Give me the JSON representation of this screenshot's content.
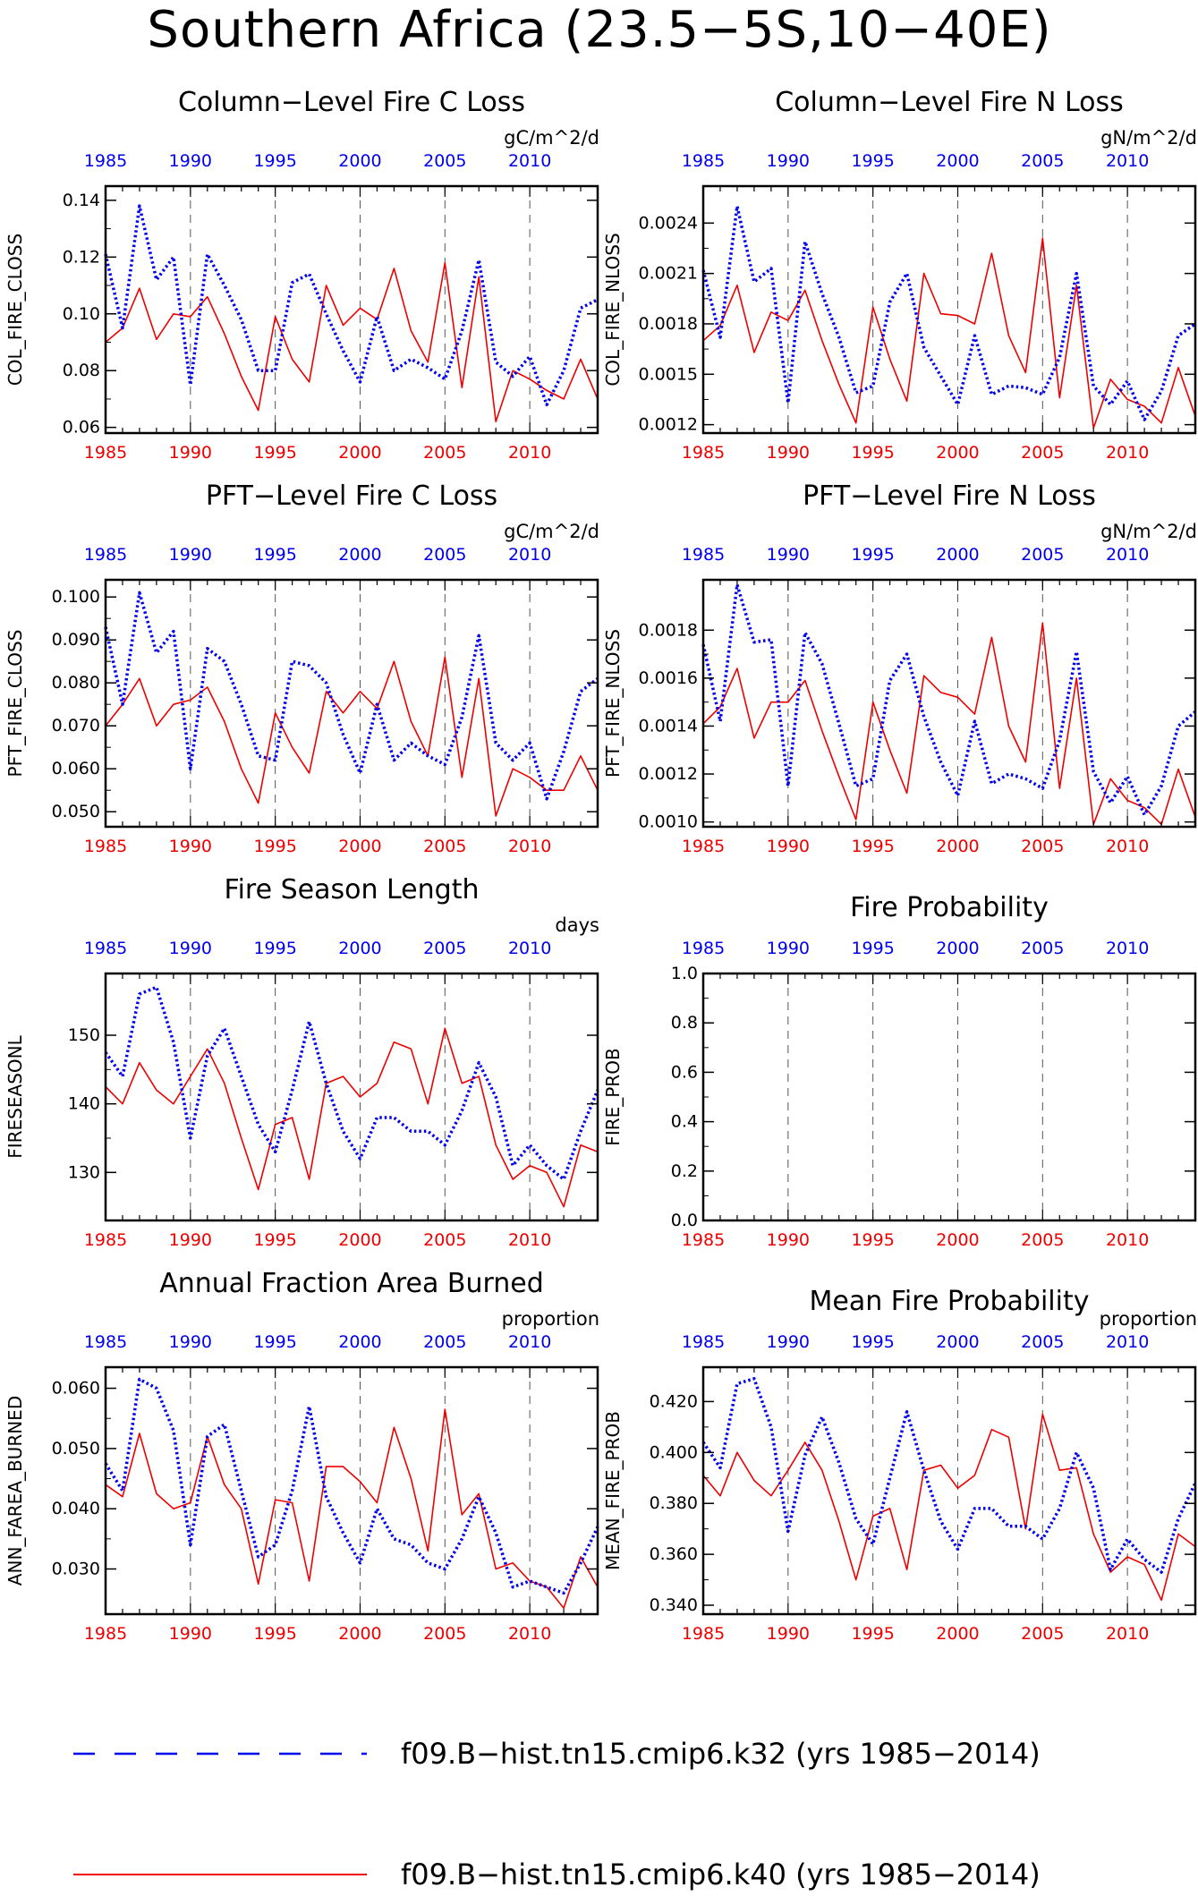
{
  "page": {
    "title": "Southern Africa (23.5−5S,10−40E)"
  },
  "colors": {
    "blue_series": "#0000ee",
    "red_series": "#ee0000",
    "axis": "#000000"
  },
  "legend": {
    "items": [
      {
        "label": "f09.B−hist.tn15.cmip6.k32 (yrs 1985−2014)",
        "color": "#0000ee",
        "style": "dotted"
      },
      {
        "label": "f09.B−hist.tn15.cmip6.k40 (yrs 1985−2014)",
        "color": "#ee0000",
        "style": "solid"
      }
    ]
  },
  "chart_data": [
    {
      "type": "line",
      "title": "Column−Level Fire C Loss",
      "units": "gC/m^2/d",
      "ylabel": "COL_FIRE_CLOSS",
      "xlim": [
        1985,
        2014
      ],
      "ylim": [
        0.058,
        0.145
      ],
      "yticks": [
        0.06,
        0.08,
        0.1,
        0.12,
        0.14
      ],
      "ytick_labels": [
        "0.06",
        "0.08",
        "0.10",
        "0.12",
        "0.14"
      ],
      "xticks": [
        1985,
        1990,
        1995,
        2000,
        2005,
        2010
      ],
      "x": [
        1985,
        1986,
        1987,
        1988,
        1989,
        1990,
        1991,
        1992,
        1993,
        1994,
        1995,
        1996,
        1997,
        1998,
        1999,
        2000,
        2001,
        2002,
        2003,
        2004,
        2005,
        2006,
        2007,
        2008,
        2009,
        2010,
        2011,
        2012,
        2013,
        2014
      ],
      "series": [
        {
          "name": "f09.B−hist.tn15.cmip6.k32",
          "color": "#0000ee",
          "style": "dotted",
          "values": [
            0.121,
            0.095,
            0.138,
            0.112,
            0.12,
            0.075,
            0.121,
            0.11,
            0.098,
            0.08,
            0.08,
            0.111,
            0.114,
            0.1,
            0.087,
            0.076,
            0.099,
            0.08,
            0.084,
            0.081,
            0.077,
            0.094,
            0.119,
            0.083,
            0.078,
            0.085,
            0.068,
            0.08,
            0.102,
            0.105
          ]
        },
        {
          "name": "f09.B−hist.tn15.cmip6.k40",
          "color": "#ee0000",
          "style": "solid",
          "values": [
            0.09,
            0.095,
            0.109,
            0.091,
            0.1,
            0.099,
            0.106,
            0.093,
            0.078,
            0.066,
            0.099,
            0.084,
            0.076,
            0.11,
            0.096,
            0.102,
            0.098,
            0.116,
            0.094,
            0.083,
            0.118,
            0.074,
            0.113,
            0.062,
            0.08,
            0.077,
            0.073,
            0.07,
            0.084,
            0.07
          ]
        }
      ]
    },
    {
      "type": "line",
      "title": "Column−Level Fire N Loss",
      "units": "gN/m^2/d",
      "ylabel": "COL_FIRE_NLOSS",
      "xlim": [
        1985,
        2014
      ],
      "ylim": [
        0.00115,
        0.00262
      ],
      "yticks": [
        0.0012,
        0.0015,
        0.0018,
        0.0021,
        0.0024
      ],
      "ytick_labels": [
        "0.0012",
        "0.0015",
        "0.0018",
        "0.0021",
        "0.0024"
      ],
      "xticks": [
        1985,
        1990,
        1995,
        2000,
        2005,
        2010
      ],
      "x": [
        1985,
        1986,
        1987,
        1988,
        1989,
        1990,
        1991,
        1992,
        1993,
        1994,
        1995,
        1996,
        1997,
        1998,
        1999,
        2000,
        2001,
        2002,
        2003,
        2004,
        2005,
        2006,
        2007,
        2008,
        2009,
        2010,
        2011,
        2012,
        2013,
        2014
      ],
      "series": [
        {
          "name": "f09.B−hist.tn15.cmip6.k32",
          "color": "#0000ee",
          "style": "dotted",
          "values": [
            0.00212,
            0.00172,
            0.0025,
            0.00205,
            0.00213,
            0.00133,
            0.00229,
            0.00198,
            0.00172,
            0.00139,
            0.00143,
            0.00193,
            0.0021,
            0.00166,
            0.00149,
            0.00132,
            0.00173,
            0.00138,
            0.00143,
            0.00142,
            0.00138,
            0.0016,
            0.0021,
            0.00143,
            0.00132,
            0.00146,
            0.00123,
            0.0014,
            0.00173,
            0.0018
          ]
        },
        {
          "name": "f09.B−hist.tn15.cmip6.k40",
          "color": "#ee0000",
          "style": "solid",
          "values": [
            0.0017,
            0.00179,
            0.00203,
            0.00163,
            0.00187,
            0.00182,
            0.002,
            0.0017,
            0.00144,
            0.00121,
            0.0019,
            0.00159,
            0.00134,
            0.0021,
            0.00186,
            0.00185,
            0.0018,
            0.00222,
            0.00173,
            0.00151,
            0.00231,
            0.00136,
            0.00203,
            0.00118,
            0.00147,
            0.00135,
            0.00131,
            0.00121,
            0.00154,
            0.00125
          ]
        }
      ]
    },
    {
      "type": "line",
      "title": "PFT−Level Fire C Loss",
      "units": "gC/m^2/d",
      "ylabel": "PFT_FIRE_CLOSS",
      "xlim": [
        1985,
        2014
      ],
      "ylim": [
        0.0465,
        0.104
      ],
      "yticks": [
        0.05,
        0.06,
        0.07,
        0.08,
        0.09,
        0.1
      ],
      "ytick_labels": [
        "0.050",
        "0.060",
        "0.070",
        "0.080",
        "0.090",
        "0.100"
      ],
      "xticks": [
        1985,
        1990,
        1995,
        2000,
        2005,
        2010
      ],
      "x": [
        1985,
        1986,
        1987,
        1988,
        1989,
        1990,
        1991,
        1992,
        1993,
        1994,
        1995,
        1996,
        1997,
        1998,
        1999,
        2000,
        2001,
        2002,
        2003,
        2004,
        2005,
        2006,
        2007,
        2008,
        2009,
        2010,
        2011,
        2012,
        2013,
        2014
      ],
      "series": [
        {
          "name": "f09.B−hist.tn15.cmip6.k32",
          "color": "#0000ee",
          "style": "dotted",
          "values": [
            0.093,
            0.075,
            0.101,
            0.087,
            0.092,
            0.06,
            0.088,
            0.085,
            0.075,
            0.063,
            0.062,
            0.085,
            0.084,
            0.08,
            0.068,
            0.059,
            0.075,
            0.062,
            0.066,
            0.063,
            0.061,
            0.072,
            0.091,
            0.066,
            0.062,
            0.066,
            0.053,
            0.064,
            0.078,
            0.081
          ]
        },
        {
          "name": "f09.B−hist.tn15.cmip6.k40",
          "color": "#ee0000",
          "style": "solid",
          "values": [
            0.07,
            0.075,
            0.081,
            0.07,
            0.075,
            0.076,
            0.079,
            0.071,
            0.06,
            0.052,
            0.073,
            0.065,
            0.059,
            0.078,
            0.073,
            0.078,
            0.074,
            0.085,
            0.071,
            0.063,
            0.086,
            0.058,
            0.081,
            0.049,
            0.06,
            0.058,
            0.055,
            0.055,
            0.063,
            0.055
          ]
        }
      ]
    },
    {
      "type": "line",
      "title": "PFT−Level Fire N Loss",
      "units": "gN/m^2/d",
      "ylabel": "PFT_FIRE_NLOSS",
      "xlim": [
        1985,
        2014
      ],
      "ylim": [
        0.00098,
        0.00201
      ],
      "yticks": [
        0.001,
        0.0012,
        0.0014,
        0.0016,
        0.0018
      ],
      "ytick_labels": [
        "0.0010",
        "0.0012",
        "0.0014",
        "0.0016",
        "0.0018"
      ],
      "xticks": [
        1985,
        1990,
        1995,
        2000,
        2005,
        2010
      ],
      "x": [
        1985,
        1986,
        1987,
        1988,
        1989,
        1990,
        1991,
        1992,
        1993,
        1994,
        1995,
        1996,
        1997,
        1998,
        1999,
        2000,
        2001,
        2002,
        2003,
        2004,
        2005,
        2006,
        2007,
        2008,
        2009,
        2010,
        2011,
        2012,
        2013,
        2014
      ],
      "series": [
        {
          "name": "f09.B−hist.tn15.cmip6.k32",
          "color": "#0000ee",
          "style": "dotted",
          "values": [
            0.00174,
            0.00142,
            0.00199,
            0.00175,
            0.00176,
            0.00115,
            0.00179,
            0.00166,
            0.00141,
            0.00115,
            0.00118,
            0.00159,
            0.0017,
            0.00144,
            0.00125,
            0.00111,
            0.00142,
            0.00116,
            0.0012,
            0.00118,
            0.00114,
            0.00134,
            0.00171,
            0.00121,
            0.00108,
            0.00119,
            0.00103,
            0.00115,
            0.0014,
            0.00146
          ]
        },
        {
          "name": "f09.B−hist.tn15.cmip6.k40",
          "color": "#ee0000",
          "style": "solid",
          "values": [
            0.00141,
            0.00148,
            0.00164,
            0.00135,
            0.0015,
            0.0015,
            0.00159,
            0.00138,
            0.00119,
            0.00101,
            0.0015,
            0.0013,
            0.00112,
            0.00161,
            0.00154,
            0.00152,
            0.00145,
            0.00177,
            0.0014,
            0.00125,
            0.00183,
            0.00114,
            0.0016,
            0.00099,
            0.00118,
            0.00109,
            0.00106,
            0.00099,
            0.00122,
            0.00102
          ]
        }
      ]
    },
    {
      "type": "line",
      "title": "Fire Season Length",
      "units": "days",
      "ylabel": "FIRESEASONL",
      "xlim": [
        1985,
        2014
      ],
      "ylim": [
        123,
        159
      ],
      "yticks": [
        130,
        140,
        150
      ],
      "ytick_labels": [
        "130",
        "140",
        "150"
      ],
      "xticks": [
        1985,
        1990,
        1995,
        2000,
        2005,
        2010
      ],
      "x": [
        1985,
        1986,
        1987,
        1988,
        1989,
        1990,
        1991,
        1992,
        1993,
        1994,
        1995,
        1996,
        1997,
        1998,
        1999,
        2000,
        2001,
        2002,
        2003,
        2004,
        2005,
        2006,
        2007,
        2008,
        2009,
        2010,
        2011,
        2012,
        2013,
        2014
      ],
      "series": [
        {
          "name": "f09.B−hist.tn15.cmip6.k32",
          "color": "#0000ee",
          "style": "dotted",
          "values": [
            147.5,
            144,
            156,
            157,
            149,
            135,
            147,
            151,
            144,
            137,
            133,
            142,
            152,
            143,
            136,
            132,
            138,
            138,
            136,
            136,
            134,
            139,
            146,
            141,
            131,
            134,
            131,
            129,
            136,
            142
          ]
        },
        {
          "name": "f09.B−hist.tn15.cmip6.k40",
          "color": "#ee0000",
          "style": "solid",
          "values": [
            142.5,
            140,
            146,
            142,
            140,
            144,
            148,
            143,
            135,
            127.5,
            137,
            138,
            129,
            143,
            144,
            141,
            143,
            149,
            148,
            140,
            151,
            143,
            144,
            134,
            129,
            131,
            130,
            125,
            134,
            133
          ]
        }
      ]
    },
    {
      "type": "line",
      "title": "Fire Probability",
      "units": "",
      "ylabel": "FIRE_PROB",
      "xlim": [
        1985,
        2014
      ],
      "ylim": [
        0.0,
        1.0
      ],
      "yticks": [
        0.0,
        0.2,
        0.4,
        0.6,
        0.8,
        1.0
      ],
      "ytick_labels": [
        "0.0",
        "0.2",
        "0.4",
        "0.6",
        "0.8",
        "1.0"
      ],
      "xticks": [
        1985,
        1990,
        1995,
        2000,
        2005,
        2010
      ],
      "x": [],
      "series": []
    },
    {
      "type": "line",
      "title": "Annual Fraction Area Burned",
      "units": "proportion",
      "ylabel": "ANN_FAREA_BURNED",
      "xlim": [
        1985,
        2014
      ],
      "ylim": [
        0.0225,
        0.0635
      ],
      "yticks": [
        0.03,
        0.04,
        0.05,
        0.06
      ],
      "ytick_labels": [
        "0.030",
        "0.040",
        "0.050",
        "0.060"
      ],
      "xticks": [
        1985,
        1990,
        1995,
        2000,
        2005,
        2010
      ],
      "x": [
        1985,
        1986,
        1987,
        1988,
        1989,
        1990,
        1991,
        1992,
        1993,
        1994,
        1995,
        1996,
        1997,
        1998,
        1999,
        2000,
        2001,
        2002,
        2003,
        2004,
        2005,
        2006,
        2007,
        2008,
        2009,
        2010,
        2011,
        2012,
        2013,
        2014
      ],
      "series": [
        {
          "name": "f09.B−hist.tn15.cmip6.k32",
          "color": "#0000ee",
          "style": "dotted",
          "values": [
            0.0475,
            0.043,
            0.0615,
            0.06,
            0.053,
            0.034,
            0.052,
            0.054,
            0.043,
            0.032,
            0.034,
            0.043,
            0.057,
            0.042,
            0.036,
            0.031,
            0.04,
            0.035,
            0.034,
            0.031,
            0.03,
            0.035,
            0.042,
            0.036,
            0.027,
            0.028,
            0.027,
            0.026,
            0.031,
            0.037
          ]
        },
        {
          "name": "f09.B−hist.tn15.cmip6.k40",
          "color": "#ee0000",
          "style": "solid",
          "values": [
            0.044,
            0.042,
            0.0525,
            0.0425,
            0.04,
            0.041,
            0.052,
            0.044,
            0.04,
            0.0275,
            0.0415,
            0.041,
            0.028,
            0.047,
            0.047,
            0.0445,
            0.041,
            0.0535,
            0.045,
            0.033,
            0.0565,
            0.039,
            0.0425,
            0.03,
            0.031,
            0.028,
            0.027,
            0.0235,
            0.032,
            0.027
          ]
        }
      ]
    },
    {
      "type": "line",
      "title": "Mean Fire Probability",
      "units": "proportion",
      "ylabel": "MEAN_FIRE_PROB",
      "xlim": [
        1985,
        2014
      ],
      "ylim": [
        0.3365,
        0.4335
      ],
      "yticks": [
        0.34,
        0.36,
        0.38,
        0.4,
        0.42
      ],
      "ytick_labels": [
        "0.340",
        "0.360",
        "0.380",
        "0.400",
        "0.420"
      ],
      "xticks": [
        1985,
        1990,
        1995,
        2000,
        2005,
        2010
      ],
      "x": [
        1985,
        1986,
        1987,
        1988,
        1989,
        1990,
        1991,
        1992,
        1993,
        1994,
        1995,
        1996,
        1997,
        1998,
        1999,
        2000,
        2001,
        2002,
        2003,
        2004,
        2005,
        2006,
        2007,
        2008,
        2009,
        2010,
        2011,
        2012,
        2013,
        2014
      ],
      "series": [
        {
          "name": "f09.B−hist.tn15.cmip6.k32",
          "color": "#0000ee",
          "style": "dotted",
          "values": [
            0.404,
            0.394,
            0.427,
            0.429,
            0.41,
            0.369,
            0.399,
            0.414,
            0.396,
            0.374,
            0.364,
            0.39,
            0.416,
            0.393,
            0.373,
            0.362,
            0.378,
            0.378,
            0.371,
            0.371,
            0.366,
            0.378,
            0.4,
            0.386,
            0.354,
            0.366,
            0.358,
            0.353,
            0.374,
            0.388
          ]
        },
        {
          "name": "f09.B−hist.tn15.cmip6.k40",
          "color": "#ee0000",
          "style": "solid",
          "values": [
            0.391,
            0.383,
            0.4,
            0.389,
            0.383,
            0.393,
            0.404,
            0.393,
            0.373,
            0.35,
            0.375,
            0.378,
            0.354,
            0.393,
            0.395,
            0.386,
            0.391,
            0.409,
            0.406,
            0.37,
            0.415,
            0.393,
            0.394,
            0.368,
            0.353,
            0.359,
            0.356,
            0.342,
            0.368,
            0.363
          ]
        }
      ]
    }
  ]
}
